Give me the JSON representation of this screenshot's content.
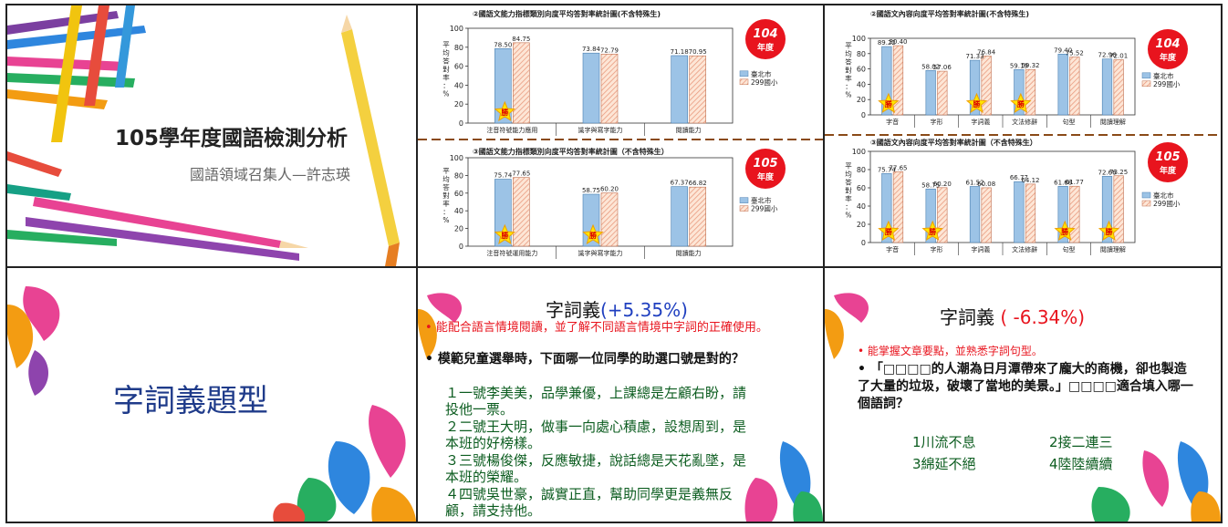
{
  "slide1": {
    "title": "105學年度國語檢測分析",
    "subtitle": "國語領域召集人—許志瑛"
  },
  "slide2": {
    "top_chart_title": "②國語文能力指標類別向度平均答對率統計圖(不含特殊生)",
    "bottom_chart_title": "③國語文能力指標類別向度平均答對率統計圖（不含特殊生）",
    "ylabel": "平均答對率：%",
    "top_year_badge": "104\n年度",
    "bottom_year_badge": "105\n年度",
    "win_label": "勝"
  },
  "slide3": {
    "top_chart_title": "②國語文內容向度平均答對率統計圖(不含特殊生)",
    "bottom_chart_title": "③國語文內容向度平均答對率統計圖（不含特殊生）",
    "ylabel": "平均答對率：%",
    "top_year_badge": "104\n年度",
    "bottom_year_badge": "105\n年度",
    "win_label": "勝"
  },
  "slide4": {
    "title": "字詞義題型"
  },
  "slide5": {
    "title": "字詞義",
    "delta": "(+5.35%)",
    "objective": "能配合語言情境閱讀，並了解不同語言情境中字詞的正確使用。",
    "question": "模範兒童選舉時，下面哪一位同學的助選口號是對的？",
    "options": [
      "１一號李美美，品學兼優，上課總是左顧右盼，請投他一票。",
      "２二號王大明，做事一向處心積慮，設想周到，是本班的好榜樣。",
      "３三號楊俊傑，反應敏捷，說話總是天花亂墜，是本班的榮耀。",
      "４四號吳世豪，誠實正直，幫助同學更是義無反顧，請支持他。"
    ]
  },
  "slide6": {
    "title": "字詞義",
    "delta": "( -6.34%)",
    "objective": "能掌握文章要點，並熟悉字詞句型。",
    "question": "「□□□□的人潮為日月潭帶來了龐大的商機，卻也製造了大量的垃圾，破壞了當地的美景。」□□□□適合填入哪一個語詞？",
    "options": [
      "1川流不息",
      "2接二連三",
      "3綿延不絕",
      "4陸陸續續"
    ]
  },
  "legend": {
    "city": "臺北市",
    "school": "299國小"
  },
  "colors": {
    "city_bar": "#9cc3e6",
    "school_bar": "#f4c7a8",
    "accent_red": "#e8141e",
    "question_green": "#0b5c1f",
    "divider": "#8a4a18"
  },
  "chart_data": [
    {
      "type": "bar",
      "title": "②國語文能力指標類別向度平均答對率統計圖(不含特殊生)",
      "categories": [
        "注音符號能力應用",
        "識字與寫字能力",
        "閱讀能力"
      ],
      "series": [
        {
          "name": "臺北市",
          "values": [
            78.5,
            73.84,
            71.18
          ]
        },
        {
          "name": "299國小",
          "values": [
            84.75,
            72.79,
            70.95
          ]
        }
      ],
      "ylabel": "平均答對率：%",
      "ylim": [
        0,
        100
      ],
      "winners": [
        0
      ]
    },
    {
      "type": "bar",
      "title": "③國語文能力指標類別向度平均答對率統計圖（不含特殊生）",
      "categories": [
        "注音符號運用能力",
        "識字與寫字能力",
        "閱讀能力"
      ],
      "series": [
        {
          "name": "臺北市",
          "values": [
            75.74,
            58.75,
            67.37
          ]
        },
        {
          "name": "299國小",
          "values": [
            77.65,
            60.2,
            66.82
          ]
        }
      ],
      "ylabel": "平均答對率：%",
      "ylim": [
        0,
        100
      ],
      "winners": [
        0,
        1
      ]
    },
    {
      "type": "bar",
      "title": "②國語文內容向度平均答對率統計圖(不含特殊生)",
      "categories": [
        "字音",
        "字形",
        "字詞義",
        "文法修辭",
        "句型",
        "閱讀理解"
      ],
      "series": [
        {
          "name": "臺北市",
          "values": [
            89.22,
            58.02,
            71.33,
            59.19,
            79.4,
            72.96
          ]
        },
        {
          "name": "299國小",
          "values": [
            90.4,
            57.06,
            76.84,
            59.32,
            75.52,
            72.01
          ]
        }
      ],
      "ylabel": "平均答對率：%",
      "ylim": [
        0,
        100
      ],
      "winners": [
        0,
        2,
        3
      ]
    },
    {
      "type": "bar",
      "title": "③國語文內容向度平均答對率統計圖（不含特殊生）",
      "categories": [
        "字音",
        "字形",
        "字詞義",
        "文法修辭",
        "句型",
        "閱讀理解"
      ],
      "series": [
        {
          "name": "臺北市",
          "values": [
            75.74,
            58.75,
            61.52,
            66.77,
            61.68,
            72.66
          ]
        },
        {
          "name": "299國小",
          "values": [
            77.65,
            60.2,
            60.08,
            64.12,
            61.77,
            73.25
          ]
        }
      ],
      "ylabel": "平均答對率：%",
      "ylim": [
        0,
        100
      ],
      "winners": [
        0,
        1,
        4,
        5
      ]
    }
  ]
}
